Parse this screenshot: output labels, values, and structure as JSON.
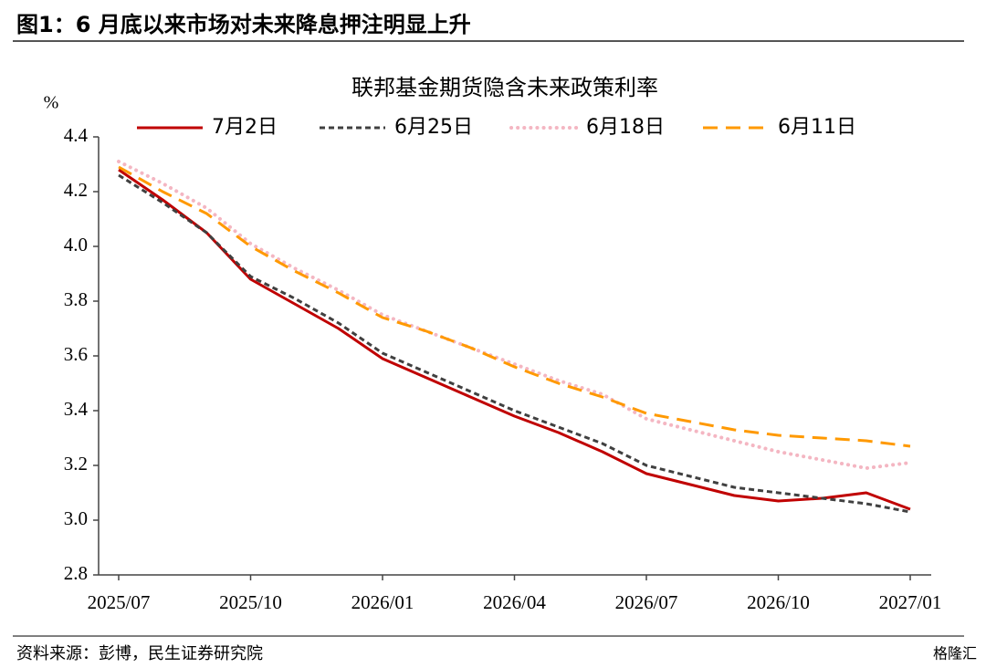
{
  "figure_title": "图1：6 月底以来市场对未来降息押注明显上升",
  "source": "资料来源：彭博，民生证券研究院",
  "watermark": "格隆汇",
  "chart_data": {
    "type": "line",
    "title": "联邦基金期货隐含未来政策利率",
    "y_label": "%",
    "categories": [
      "2025/07",
      null,
      null,
      "2025/10",
      null,
      null,
      "2026/01",
      null,
      null,
      "2026/04",
      null,
      null,
      "2026/07",
      null,
      null,
      "2026/10",
      null,
      null,
      "2027/01"
    ],
    "series": [
      {
        "name": "7月2日",
        "color": "#c00000",
        "style": "solid",
        "values": [
          4.28,
          4.17,
          4.05,
          3.88,
          3.79,
          3.7,
          3.59,
          3.52,
          3.45,
          3.38,
          3.32,
          3.25,
          3.17,
          3.13,
          3.09,
          3.07,
          3.08,
          3.1,
          3.04
        ]
      },
      {
        "name": "6月25日",
        "color": "#404040",
        "style": "dash",
        "values": [
          4.26,
          4.16,
          4.05,
          3.89,
          3.81,
          3.72,
          3.61,
          3.54,
          3.47,
          3.4,
          3.34,
          3.28,
          3.2,
          3.16,
          3.12,
          3.1,
          3.08,
          3.06,
          3.03
        ]
      },
      {
        "name": "6月18日",
        "color": "#f4b6c2",
        "style": "dot",
        "values": [
          4.31,
          4.23,
          4.14,
          4.01,
          3.92,
          3.84,
          3.75,
          3.69,
          3.63,
          3.57,
          3.51,
          3.46,
          3.37,
          3.33,
          3.29,
          3.25,
          3.22,
          3.19,
          3.21
        ]
      },
      {
        "name": "6月11日",
        "color": "#ff9900",
        "style": "longdash",
        "values": [
          4.29,
          4.2,
          4.12,
          4.0,
          3.91,
          3.83,
          3.74,
          3.69,
          3.63,
          3.56,
          3.5,
          3.45,
          3.39,
          3.36,
          3.33,
          3.31,
          3.3,
          3.29,
          3.27
        ]
      }
    ],
    "ylim": [
      2.8,
      4.4
    ],
    "yticks": [
      2.8,
      {
        "value": 3,
        "label": "3.0"
      },
      3.2,
      3.4,
      3.6,
      3.8,
      {
        "value": 4,
        "label": "4.0"
      },
      4.2,
      4.4
    ],
    "legend": "top"
  }
}
